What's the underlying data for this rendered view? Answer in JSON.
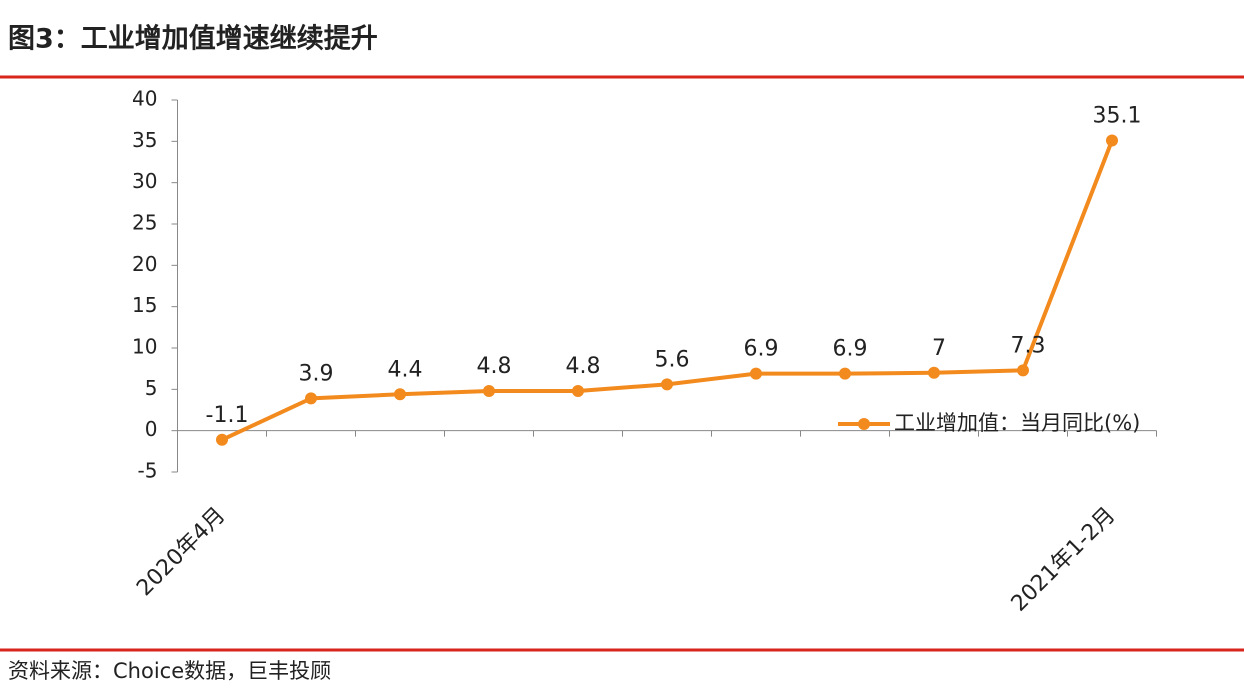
{
  "title": "图3：工业增加值增速继续提升",
  "source": "资料来源：Choice数据，巨丰投顾",
  "chart_data": {
    "type": "line",
    "categories": [
      "2020年4月",
      null,
      null,
      null,
      null,
      null,
      null,
      null,
      null,
      null,
      "2021年1-2月"
    ],
    "series": [
      {
        "name": "工业增加值：当月同比(%)",
        "color": "#f28a1e",
        "values": [
          -1.1,
          3.9,
          4.4,
          4.8,
          4.8,
          5.6,
          6.9,
          6.9,
          7,
          7.3,
          35.1
        ]
      }
    ],
    "ylim": [
      -5,
      40
    ],
    "yticks": [
      -5,
      0,
      5,
      10,
      15,
      20,
      25,
      30,
      35,
      40
    ],
    "legend": "right",
    "data_labels": true
  }
}
